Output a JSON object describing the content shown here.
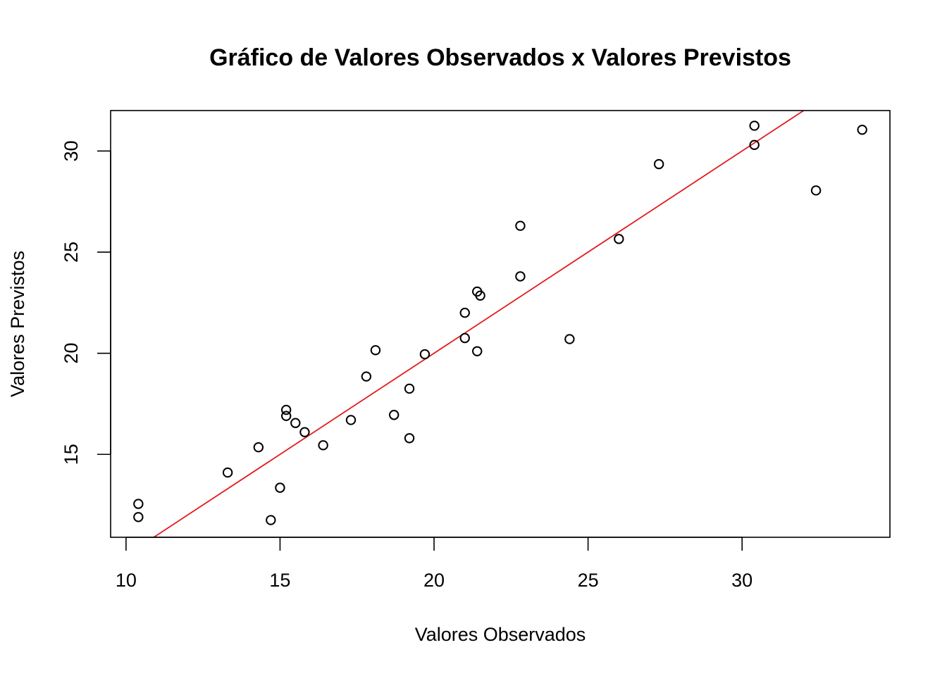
{
  "chart_data": {
    "type": "scatter",
    "title": "Gráfico de Valores Observados x Valores Previstos",
    "xlabel": "Valores Observados",
    "ylabel": "Valores Previstos",
    "xlim": [
      9.5,
      34.8
    ],
    "ylim": [
      10.9,
      32.0
    ],
    "x_ticks": [
      10,
      15,
      20,
      25,
      30
    ],
    "y_ticks": [
      15,
      20,
      25,
      30
    ],
    "x_tick_labels": [
      "10",
      "15",
      "20",
      "25",
      "30"
    ],
    "y_tick_labels": [
      "15",
      "20",
      "25",
      "30"
    ],
    "grid": false,
    "legend": "none",
    "point_color": "#000000",
    "line_color": "#e41a1c",
    "points": [
      {
        "x": 10.4,
        "y": 12.55
      },
      {
        "x": 10.4,
        "y": 11.9
      },
      {
        "x": 13.3,
        "y": 14.1
      },
      {
        "x": 14.3,
        "y": 15.35
      },
      {
        "x": 14.7,
        "y": 11.75
      },
      {
        "x": 15.0,
        "y": 13.35
      },
      {
        "x": 15.2,
        "y": 17.2
      },
      {
        "x": 15.2,
        "y": 16.9
      },
      {
        "x": 15.5,
        "y": 16.55
      },
      {
        "x": 15.8,
        "y": 16.1
      },
      {
        "x": 16.4,
        "y": 15.45
      },
      {
        "x": 17.3,
        "y": 16.7
      },
      {
        "x": 17.8,
        "y": 18.85
      },
      {
        "x": 18.1,
        "y": 20.15
      },
      {
        "x": 18.7,
        "y": 16.95
      },
      {
        "x": 19.2,
        "y": 18.25
      },
      {
        "x": 19.2,
        "y": 15.8
      },
      {
        "x": 19.7,
        "y": 19.95
      },
      {
        "x": 21.0,
        "y": 22.0
      },
      {
        "x": 21.0,
        "y": 20.75
      },
      {
        "x": 21.4,
        "y": 23.05
      },
      {
        "x": 21.4,
        "y": 20.1
      },
      {
        "x": 21.5,
        "y": 22.85
      },
      {
        "x": 22.8,
        "y": 26.3
      },
      {
        "x": 22.8,
        "y": 23.8
      },
      {
        "x": 24.4,
        "y": 20.7
      },
      {
        "x": 26.0,
        "y": 25.65
      },
      {
        "x": 27.3,
        "y": 29.35
      },
      {
        "x": 30.4,
        "y": 31.25
      },
      {
        "x": 30.4,
        "y": 30.3
      },
      {
        "x": 32.4,
        "y": 28.05
      },
      {
        "x": 33.9,
        "y": 31.05
      }
    ],
    "reference_line": {
      "x1": 9.5,
      "y1": 9.5,
      "x2": 34.8,
      "y2": 34.8
    }
  }
}
